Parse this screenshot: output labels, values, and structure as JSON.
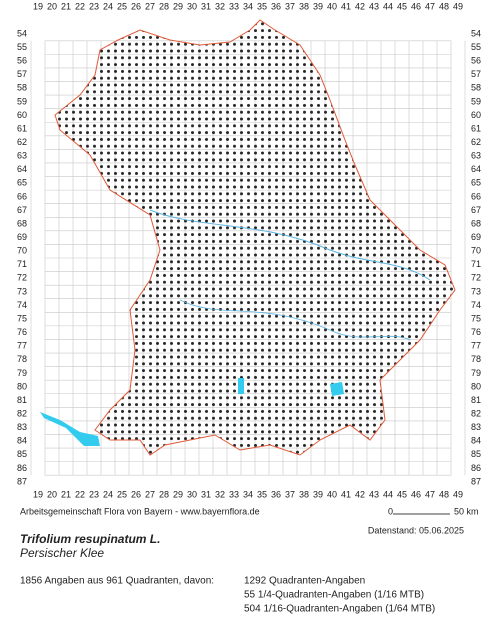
{
  "map": {
    "columns": [
      19,
      20,
      21,
      22,
      23,
      24,
      25,
      26,
      27,
      28,
      29,
      30,
      31,
      32,
      33,
      34,
      35,
      36,
      37,
      38,
      39,
      40,
      41,
      42,
      43,
      44,
      45,
      46,
      47,
      48,
      49
    ],
    "rows": [
      54,
      55,
      56,
      57,
      58,
      59,
      60,
      61,
      62,
      63,
      64,
      65,
      66,
      67,
      68,
      69,
      70,
      71,
      72,
      73,
      74,
      75,
      76,
      77,
      78,
      79,
      80,
      81,
      82,
      83,
      84,
      85,
      86,
      87
    ]
  },
  "footer": {
    "credit": "Arbeitsgemeinschaft Flora von Bayern - www.bayernflora.de",
    "scale_start": "0",
    "scale_end": "50 km",
    "date": "Datenstand: 05.06.2025"
  },
  "species": {
    "name": "Trifolium resupinatum L.",
    "common_name": "Persischer Klee"
  },
  "stats": {
    "summary": "1856 Angaben aus 961 Quadranten, davon:",
    "lines": [
      "1292 Quadranten-Angaben",
      "55 1/4-Quadranten-Angaben (1/16 MTB)",
      "504 1/16-Quadranten-Angaben (1/64 MTB)"
    ]
  }
}
